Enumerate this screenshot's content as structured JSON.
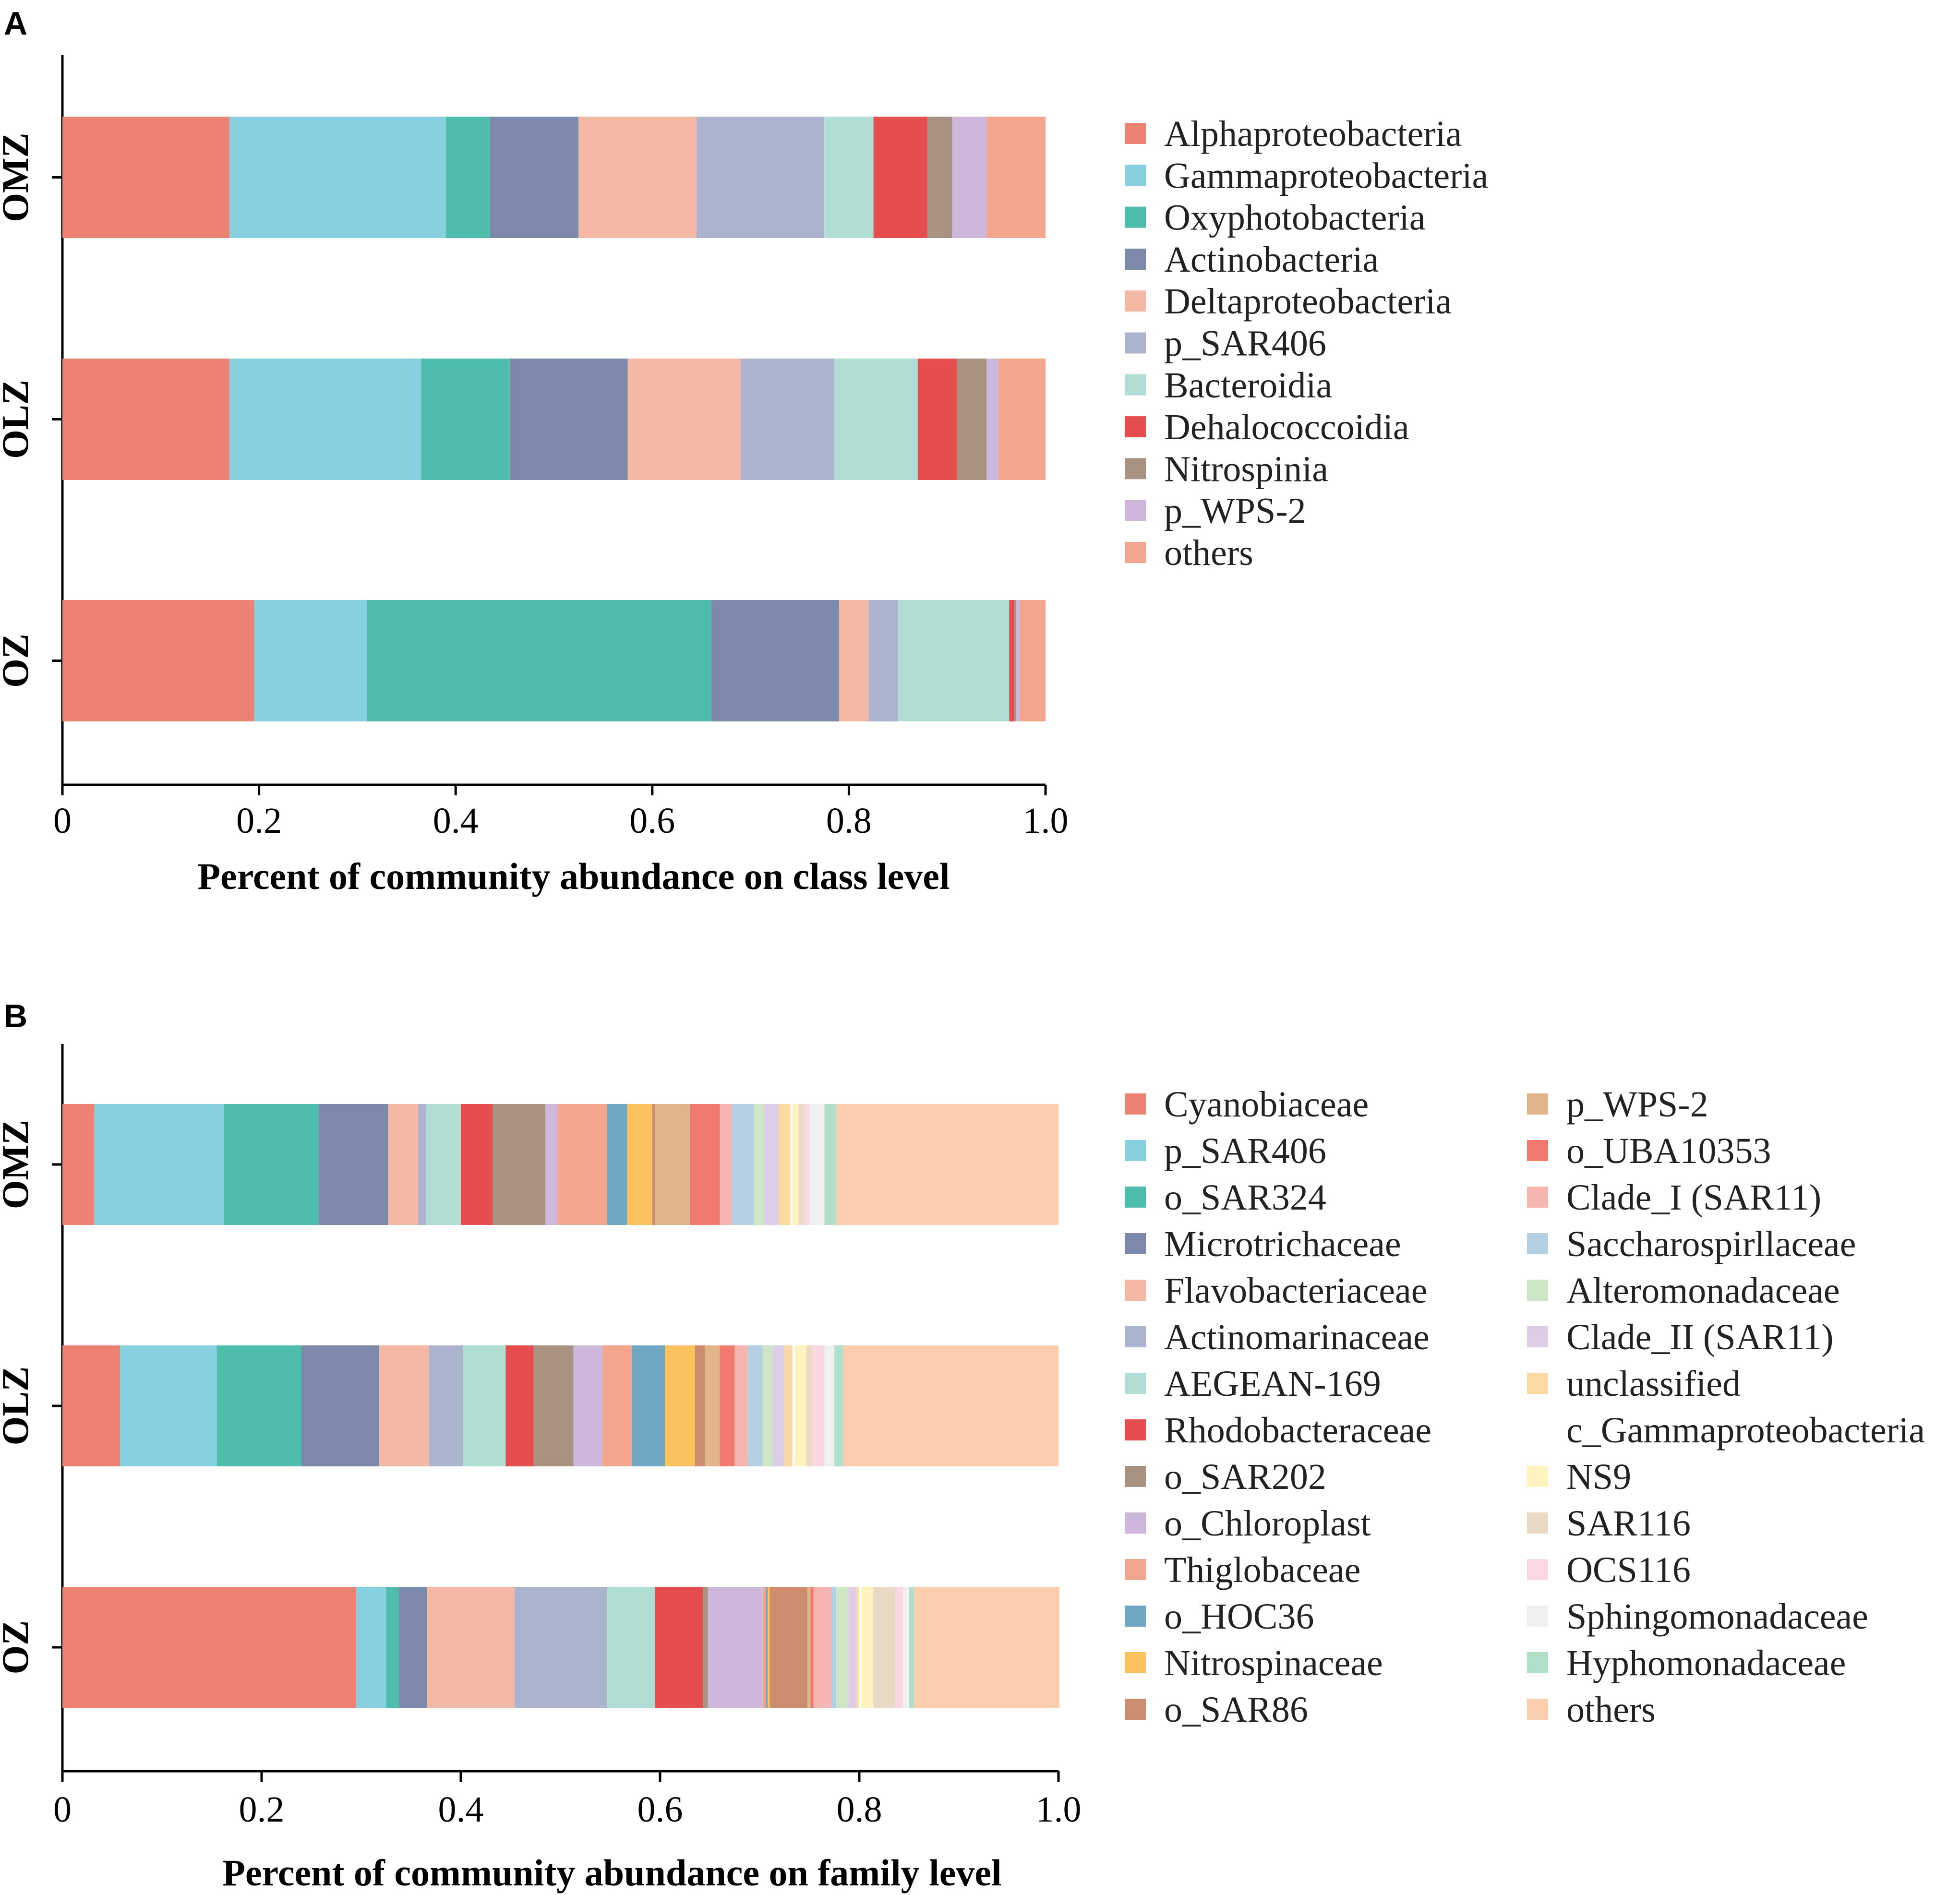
{
  "chart_data": [
    {
      "panel": "A",
      "type": "bar",
      "orientation": "horizontal-stacked",
      "xlabel": "Percent of community abundance on class level",
      "ylabel": "",
      "xlim": [
        0,
        1.0
      ],
      "x_ticks": [
        "0",
        "0.2",
        "0.4",
        "0.6",
        "0.8",
        "1.0"
      ],
      "categories": [
        "OMZ",
        "OLZ",
        "OZ"
      ],
      "series": [
        {
          "name": "Alphaproteobacteria",
          "color": "#EE8272",
          "values": [
            0.17,
            0.17,
            0.195
          ]
        },
        {
          "name": "Gammaproteobacteria",
          "color": "#87D0DF",
          "values": [
            0.22,
            0.195,
            0.115
          ]
        },
        {
          "name": "Oxyphotobacteria",
          "color": "#4EBDAB",
          "values": [
            0.045,
            0.09,
            0.35
          ]
        },
        {
          "name": "Actinobacteria",
          "color": "#7C89AB",
          "values": [
            0.09,
            0.12,
            0.13
          ]
        },
        {
          "name": "Deltaproteobacteria",
          "color": "#F5B8A5",
          "values": [
            0.12,
            0.115,
            0.03
          ]
        },
        {
          "name": "p_SAR406",
          "color": "#ABB3CE",
          "values": [
            0.13,
            0.095,
            0.03
          ]
        },
        {
          "name": "Bacteroidia",
          "color": "#B1DED4",
          "values": [
            0.05,
            0.085,
            0.113
          ]
        },
        {
          "name": "Dehalococcoidia",
          "color": "#E64D4E",
          "values": [
            0.055,
            0.04,
            0.005
          ]
        },
        {
          "name": "Nitrospinia",
          "color": "#A89382",
          "values": [
            0.025,
            0.03,
            0.002
          ]
        },
        {
          "name": "p_WPS-2",
          "color": "#CDB8DC",
          "values": [
            0.035,
            0.012,
            0.004
          ]
        },
        {
          "name": "others",
          "color": "#F4A58D",
          "values": [
            0.06,
            0.048,
            0.026
          ]
        }
      ]
    },
    {
      "panel": "B",
      "type": "bar",
      "orientation": "horizontal-stacked",
      "xlabel": "Percent of community abundance on family level",
      "ylabel": "",
      "xlim": [
        0,
        1.0
      ],
      "x_ticks": [
        "0",
        "0.2",
        "0.4",
        "0.6",
        "0.8",
        "1.0"
      ],
      "categories": [
        "OMZ",
        "OLZ",
        "OZ"
      ],
      "series": [
        {
          "name": "Cyanobiaceae",
          "color": "#EE8272",
          "values": [
            0.032,
            0.058,
            0.295
          ]
        },
        {
          "name": "p_SAR406",
          "color": "#87D0DF",
          "values": [
            0.13,
            0.097,
            0.03
          ]
        },
        {
          "name": "o_SAR324",
          "color": "#4EBDAB",
          "values": [
            0.095,
            0.085,
            0.013
          ]
        },
        {
          "name": "Microtrichaceae",
          "color": "#7C89AB",
          "values": [
            0.07,
            0.078,
            0.028
          ]
        },
        {
          "name": "Flavobacteriaceae",
          "color": "#F5B8A5",
          "values": [
            0.03,
            0.05,
            0.088
          ]
        },
        {
          "name": "Actinomarinaceae",
          "color": "#ABB3CE",
          "values": [
            0.008,
            0.034,
            0.093
          ]
        },
        {
          "name": "AEGEAN-169",
          "color": "#B1DED4",
          "values": [
            0.035,
            0.043,
            0.048
          ]
        },
        {
          "name": "Rhodobacteraceae",
          "color": "#E64D4E",
          "values": [
            0.032,
            0.028,
            0.048
          ]
        },
        {
          "name": "o_SAR202",
          "color": "#A89382",
          "values": [
            0.053,
            0.04,
            0.005
          ]
        },
        {
          "name": "o_Chloroplast",
          "color": "#CDB8DC",
          "values": [
            0.012,
            0.029,
            0.055
          ]
        },
        {
          "name": "Thiglobaceae",
          "color": "#F4A58D",
          "values": [
            0.05,
            0.03,
            0.003
          ]
        },
        {
          "name": "o_HOC36",
          "color": "#6FA6C1",
          "values": [
            0.02,
            0.033,
            0.002
          ]
        },
        {
          "name": "Nitrospinaceae",
          "color": "#FBC25F",
          "values": [
            0.025,
            0.03,
            0.002
          ]
        },
        {
          "name": "o_SAR86",
          "color": "#CC8E6E",
          "values": [
            0.003,
            0.01,
            0.038
          ]
        },
        {
          "name": "p_WPS-2",
          "color": "#E0B58B",
          "values": [
            0.035,
            0.015,
            0.003
          ]
        },
        {
          "name": "o_UBA10353",
          "color": "#F07A6E",
          "values": [
            0.03,
            0.015,
            0.003
          ]
        },
        {
          "name": "Clade_I (SAR11)",
          "color": "#F7B5B1",
          "values": [
            0.012,
            0.013,
            0.018
          ]
        },
        {
          "name": "Saccharospirllaceae",
          "color": "#B5CFE3",
          "values": [
            0.022,
            0.015,
            0.005
          ]
        },
        {
          "name": "Alteromonadaceae",
          "color": "#CDE6C6",
          "values": [
            0.01,
            0.01,
            0.012
          ]
        },
        {
          "name": "Clade_II (SAR11)",
          "color": "#DECDE6",
          "values": [
            0.015,
            0.012,
            0.008
          ]
        },
        {
          "name": "unclassified",
          "color": "#FCD9A0",
          "values": [
            0.012,
            0.008,
            0.003
          ]
        },
        {
          "name": "c_Gammaproteobacteria",
          "color": "#FFFFFF",
          "values": [
            0.002,
            0.002,
            0.002
          ]
        },
        {
          "name": "NS9",
          "color": "#FFF4C0",
          "values": [
            0.006,
            0.012,
            0.012
          ]
        },
        {
          "name": "SAR116",
          "color": "#E8DAC4",
          "values": [
            0.006,
            0.006,
            0.022
          ]
        },
        {
          "name": "OCS116",
          "color": "#FBD7E1",
          "values": [
            0.005,
            0.012,
            0.008
          ]
        },
        {
          "name": "Sphingomonadaceae",
          "color": "#F0F0F0",
          "values": [
            0.015,
            0.01,
            0.006
          ]
        },
        {
          "name": "Hyphomonadaceae",
          "color": "#B2DFCA",
          "values": [
            0.012,
            0.009,
            0.005
          ]
        },
        {
          "name": "others",
          "color": "#FACDAF",
          "values": [
            0.223,
            0.216,
            0.146
          ]
        }
      ]
    }
  ]
}
